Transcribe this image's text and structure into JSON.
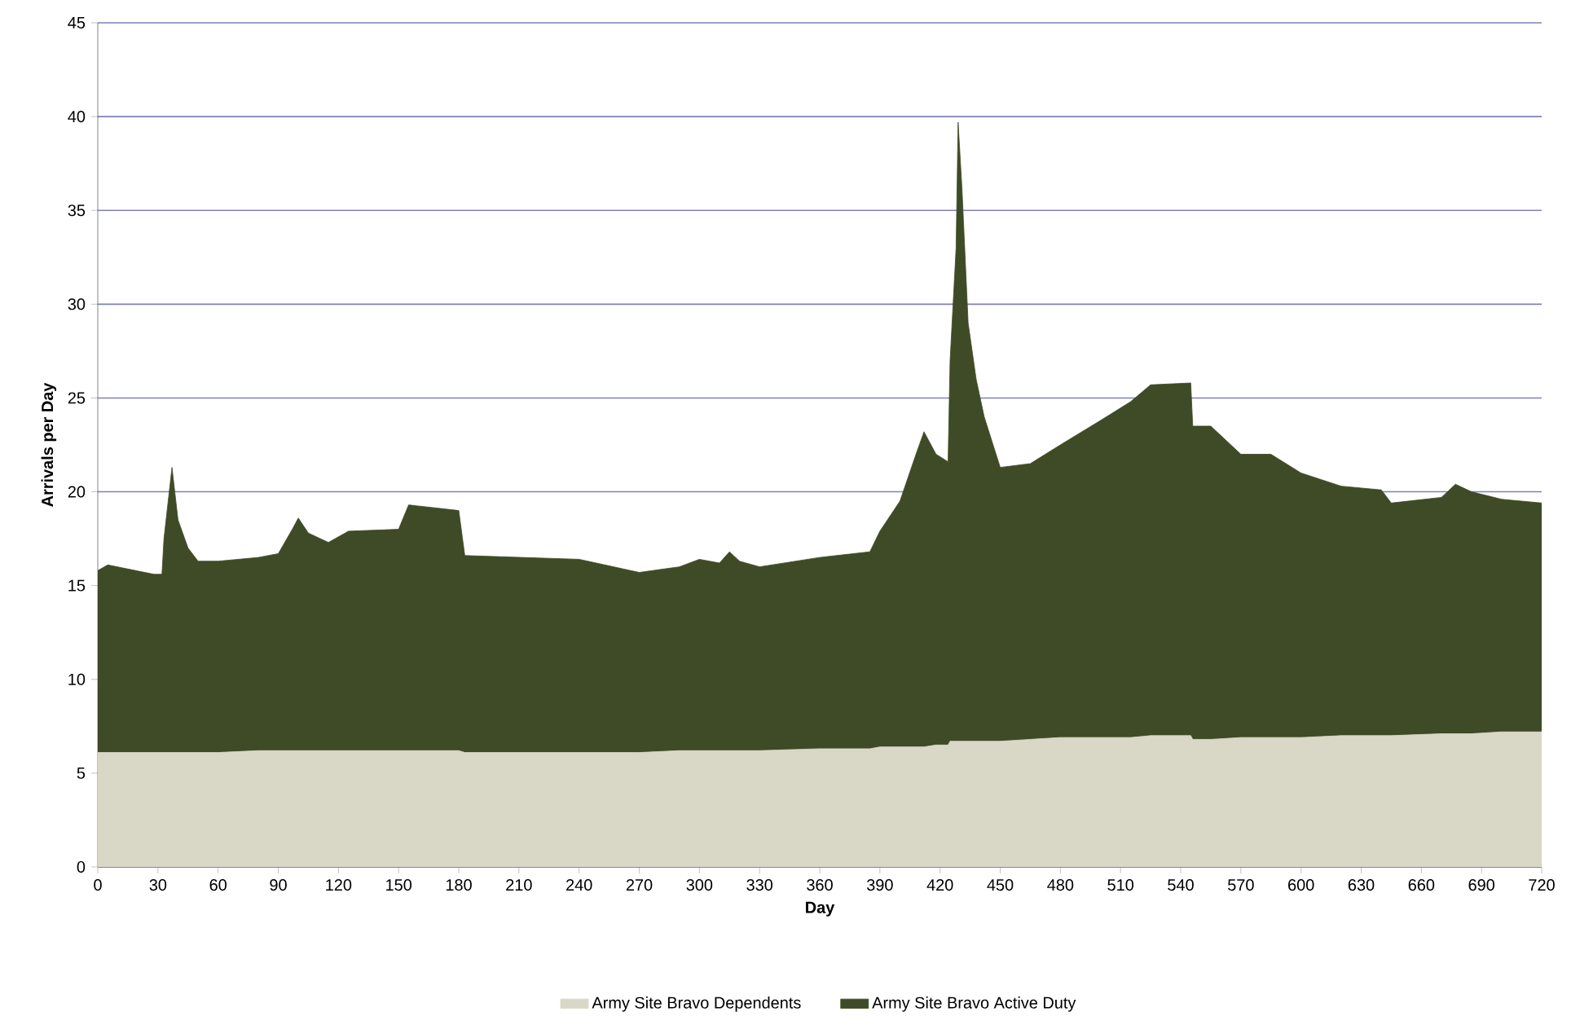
{
  "chart_data": {
    "type": "area",
    "stacked": true,
    "xlabel": "Day",
    "ylabel": "Arrivals per Day",
    "x": [
      0,
      5,
      28,
      32,
      33,
      37,
      40,
      45,
      50,
      60,
      80,
      90,
      97,
      100,
      105,
      115,
      125,
      150,
      155,
      180,
      183,
      240,
      270,
      290,
      300,
      310,
      315,
      320,
      330,
      360,
      385,
      390,
      400,
      408,
      412,
      418,
      424,
      425,
      428,
      429,
      431,
      434,
      438,
      442,
      450,
      465,
      480,
      500,
      515,
      525,
      545,
      546,
      555,
      570,
      585,
      600,
      620,
      640,
      645,
      670,
      677,
      685,
      700,
      720
    ],
    "series": [
      {
        "name": "Army Site Bravo Dependents",
        "color": "#d9d8c6",
        "values": [
          6.1,
          6.1,
          6.1,
          6.1,
          6.1,
          6.1,
          6.1,
          6.1,
          6.1,
          6.1,
          6.2,
          6.2,
          6.2,
          6.2,
          6.2,
          6.2,
          6.2,
          6.2,
          6.2,
          6.2,
          6.1,
          6.1,
          6.1,
          6.2,
          6.2,
          6.2,
          6.2,
          6.2,
          6.2,
          6.3,
          6.3,
          6.4,
          6.4,
          6.4,
          6.4,
          6.5,
          6.5,
          6.7,
          6.7,
          6.7,
          6.7,
          6.7,
          6.7,
          6.7,
          6.7,
          6.8,
          6.9,
          6.9,
          6.9,
          7.0,
          7.0,
          6.8,
          6.8,
          6.9,
          6.9,
          6.9,
          7.0,
          7.0,
          7.0,
          7.1,
          7.1,
          7.1,
          7.2,
          7.2
        ]
      },
      {
        "name": "Army Site Bravo Active Duty",
        "color": "#3f4a26",
        "values": [
          9.7,
          10.0,
          9.5,
          9.5,
          11.4,
          15.2,
          12.4,
          10.9,
          10.2,
          10.2,
          10.3,
          10.5,
          11.8,
          12.4,
          11.6,
          11.1,
          11.7,
          11.8,
          13.1,
          12.8,
          10.5,
          10.3,
          9.6,
          9.8,
          10.2,
          10.0,
          10.6,
          10.1,
          9.8,
          10.2,
          10.5,
          11.5,
          13.1,
          15.6,
          16.8,
          15.5,
          15.1,
          20.3,
          26.3,
          33.0,
          29.3,
          22.3,
          19.3,
          17.3,
          14.6,
          14.7,
          15.6,
          16.9,
          17.9,
          18.7,
          18.8,
          16.7,
          16.7,
          15.1,
          15.1,
          14.1,
          13.3,
          13.1,
          12.4,
          12.6,
          13.3,
          12.9,
          12.4,
          12.2
        ]
      }
    ],
    "xlim": [
      0,
      720
    ],
    "xticks": [
      0,
      30,
      60,
      90,
      120,
      150,
      180,
      210,
      240,
      270,
      300,
      330,
      360,
      390,
      420,
      450,
      480,
      510,
      540,
      570,
      600,
      630,
      660,
      690,
      720
    ],
    "ylim": [
      0,
      45
    ],
    "yticks": [
      0,
      5,
      10,
      15,
      20,
      25,
      30,
      35,
      40,
      45
    ],
    "grid": "y",
    "legend": "bottom"
  }
}
